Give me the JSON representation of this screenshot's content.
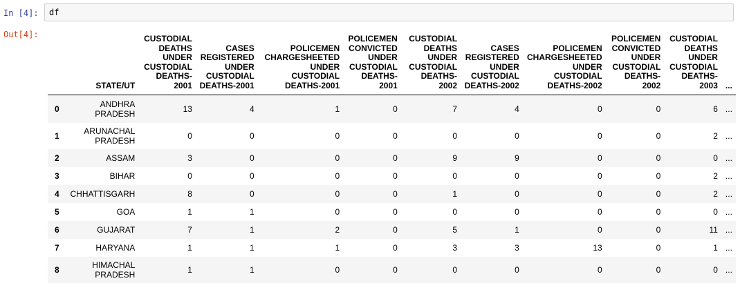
{
  "notebook": {
    "in_prompt": "In [4]:",
    "out_prompt": "Out[4]:",
    "code": "df"
  },
  "table": {
    "index_header": "",
    "columns": [
      "STATE/UT",
      "CUSTODIAL DEATHS UNDER CUSTODIAL DEATHS-2001",
      "CASES REGISTERED UNDER CUSTODIAL DEATHS-2001",
      "POLICEMEN CHARGESHEETED UNDER CUSTODIAL DEATHS-2001",
      "POLICEMEN CONVICTED UNDER CUSTODIAL DEATHS-2001",
      "CUSTODIAL DEATHS UNDER CUSTODIAL DEATHS-2002",
      "CASES REGISTERED UNDER CUSTODIAL DEATHS-2002",
      "POLICEMEN CHARGESHEETED UNDER CUSTODIAL DEATHS-2002",
      "POLICEMEN CONVICTED UNDER CUSTODIAL DEATHS-2002",
      "CUSTODIAL DEATHS UNDER CUSTODIAL DEATHS-2003",
      "..."
    ],
    "rows": [
      {
        "index": "0",
        "state": "ANDHRA PRADESH",
        "values": [
          "13",
          "4",
          "1",
          "0",
          "7",
          "4",
          "0",
          "0",
          "6",
          "..."
        ]
      },
      {
        "index": "1",
        "state": "ARUNACHAL PRADESH",
        "values": [
          "0",
          "0",
          "0",
          "0",
          "0",
          "0",
          "0",
          "0",
          "2",
          "..."
        ]
      },
      {
        "index": "2",
        "state": "ASSAM",
        "values": [
          "3",
          "0",
          "0",
          "0",
          "9",
          "9",
          "0",
          "0",
          "0",
          "..."
        ]
      },
      {
        "index": "3",
        "state": "BIHAR",
        "values": [
          "0",
          "0",
          "0",
          "0",
          "0",
          "0",
          "0",
          "0",
          "2",
          "..."
        ]
      },
      {
        "index": "4",
        "state": "CHHATTISGARH",
        "values": [
          "8",
          "0",
          "0",
          "0",
          "1",
          "0",
          "0",
          "0",
          "2",
          "..."
        ]
      },
      {
        "index": "5",
        "state": "GOA",
        "values": [
          "1",
          "1",
          "0",
          "0",
          "0",
          "0",
          "0",
          "0",
          "0",
          "..."
        ]
      },
      {
        "index": "6",
        "state": "GUJARAT",
        "values": [
          "7",
          "1",
          "2",
          "0",
          "5",
          "1",
          "0",
          "0",
          "11",
          "..."
        ]
      },
      {
        "index": "7",
        "state": "HARYANA",
        "values": [
          "1",
          "1",
          "1",
          "0",
          "3",
          "3",
          "13",
          "0",
          "1",
          "..."
        ]
      },
      {
        "index": "8",
        "state": "HIMACHAL PRADESH",
        "values": [
          "1",
          "1",
          "0",
          "0",
          "0",
          "0",
          "0",
          "0",
          "0",
          "..."
        ]
      }
    ]
  }
}
